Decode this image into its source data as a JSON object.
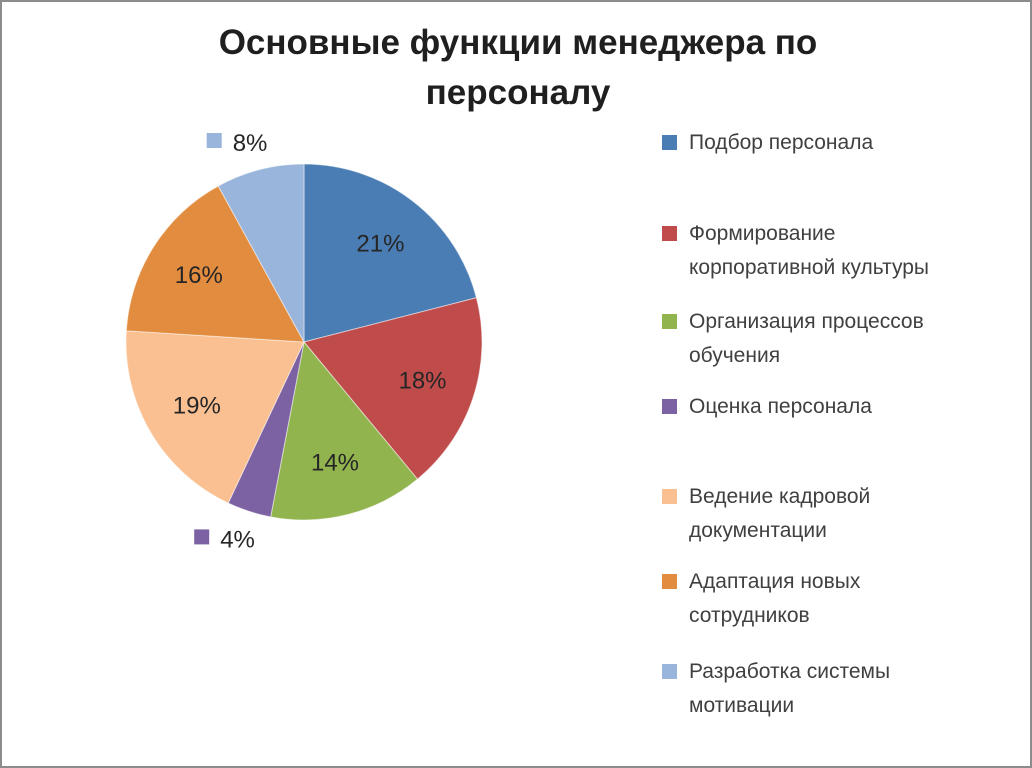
{
  "page": {
    "background_color": "#FFFFFF",
    "border_color": "#8C8C8C"
  },
  "chart_data": {
    "type": "pie",
    "title": "Основные функции менеджера по персоналу",
    "legend_position": "right",
    "direction": "clockwise",
    "start_angle_deg": 0,
    "data_labels": "percent",
    "grid": false,
    "series": [
      {
        "label": "Подбор персонала",
        "value": 21,
        "percent_label": "21%",
        "color": "#4B7DB5",
        "label_placement": "inside"
      },
      {
        "label": "Формирование корпоративной культуры",
        "value": 18,
        "percent_label": "18%",
        "color": "#BF4C4A",
        "label_placement": "inside"
      },
      {
        "label": "Организация процессов обучения",
        "value": 14,
        "percent_label": "14%",
        "color": "#92B44F",
        "label_placement": "inside"
      },
      {
        "label": "Оценка персонала",
        "value": 4,
        "percent_label": "4%",
        "color": "#7D62A3",
        "label_placement": "outside"
      },
      {
        "label": "Ведение кадровой документации",
        "value": 19,
        "percent_label": "19%",
        "color": "#FAC091",
        "label_placement": "inside"
      },
      {
        "label": "Адаптация новых сотрудников",
        "value": 16,
        "percent_label": "16%",
        "color": "#E28C3F",
        "label_placement": "inside"
      },
      {
        "label": "Разработка системы мотивации",
        "value": 8,
        "percent_label": "8%",
        "color": "#9AB5DB",
        "label_placement": "outside"
      }
    ],
    "text_colors": {
      "title": "#1F1F1F",
      "data_label": "#262626",
      "legend": "#404040"
    }
  }
}
